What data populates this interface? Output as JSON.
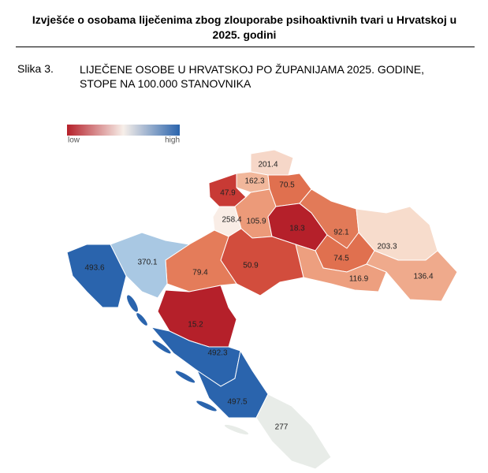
{
  "header": {
    "title": "Izvješće o osobama liječenima zbog zlouporabe psihoaktivnih tvari u Hrvatskoj u 2025. godini"
  },
  "figure": {
    "label": "Slika 3.",
    "caption": "LIJEČENE OSOBE U HRVATSKOJ PO ŽUPANIJAMA 2025. GODINE, STOPE NA 100.000 STANOVNIKA"
  },
  "legend": {
    "low": "low",
    "high": "high",
    "colors": [
      "#b5202a",
      "#f7efe9",
      "#2a64ad"
    ]
  },
  "regions": [
    {
      "label": "201.4",
      "color": "#f6d7c8"
    },
    {
      "label": "162.3",
      "color": "#f1b79b"
    },
    {
      "label": "70.5",
      "color": "#e0704f"
    },
    {
      "label": "47.9",
      "color": "#c83a35"
    },
    {
      "label": "258.4",
      "color": "#f9ede6"
    },
    {
      "label": "105.9",
      "color": "#ec9a79"
    },
    {
      "label": "18.3",
      "color": "#b5202a"
    },
    {
      "label": "92.1",
      "color": "#e27a58"
    },
    {
      "label": "203.3",
      "color": "#f7dccc"
    },
    {
      "label": "74.5",
      "color": "#e0704f"
    },
    {
      "label": "116.9",
      "color": "#ed9f7f"
    },
    {
      "label": "136.4",
      "color": "#efaa8c"
    },
    {
      "label": "50.9",
      "color": "#d24d3d"
    },
    {
      "label": "79.4",
      "color": "#e47c5a"
    },
    {
      "label": "370.1",
      "color": "#a9c8e3"
    },
    {
      "label": "493.6",
      "color": "#2a64ad"
    },
    {
      "label": "15.2",
      "color": "#b5202a"
    },
    {
      "label": "492.3",
      "color": "#2a64ad"
    },
    {
      "label": "497.5",
      "color": "#2a64ad"
    },
    {
      "label": "277",
      "color": "#e8ece8"
    }
  ]
}
